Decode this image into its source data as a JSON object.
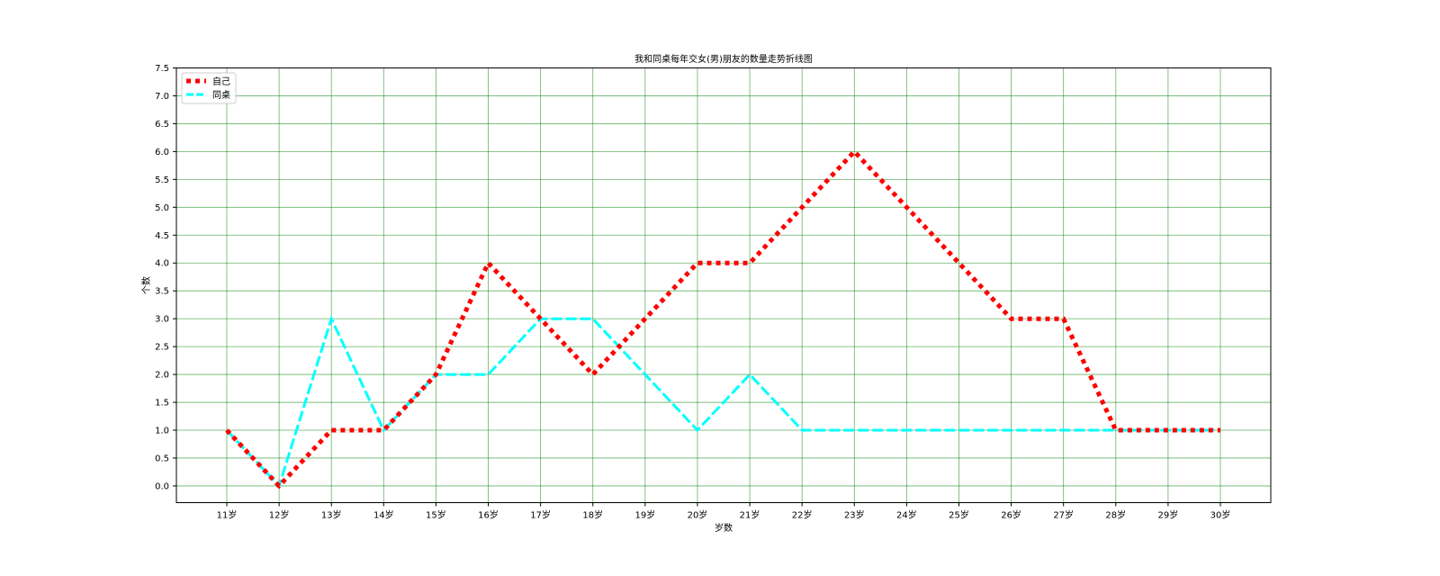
{
  "chart_data": {
    "type": "line",
    "title": "我和同桌每年交女(男)朋友的数量走势折线图",
    "xlabel": "岁数",
    "ylabel": "个数",
    "categories": [
      "11岁",
      "12岁",
      "13岁",
      "14岁",
      "15岁",
      "16岁",
      "17岁",
      "18岁",
      "19岁",
      "20岁",
      "21岁",
      "22岁",
      "23岁",
      "24岁",
      "25岁",
      "26岁",
      "27岁",
      "28岁",
      "29岁",
      "30岁"
    ],
    "ylim": [
      -0.3,
      7.5
    ],
    "yticks": [
      "0.0",
      "0.5",
      "1.0",
      "1.5",
      "2.0",
      "2.5",
      "3.0",
      "3.5",
      "4.0",
      "4.5",
      "5.0",
      "5.5",
      "6.0",
      "6.5",
      "7.0",
      "7.5"
    ],
    "grid": true,
    "legend_position": "top-left",
    "series": [
      {
        "name": "自己",
        "color": "#ff0000",
        "style": "dotted",
        "values": [
          1,
          0,
          1,
          1,
          2,
          4,
          3,
          2,
          3,
          4,
          4,
          5,
          6,
          5,
          4,
          3,
          3,
          1,
          1,
          1
        ]
      },
      {
        "name": "同桌",
        "color": "#00ffff",
        "style": "dashed",
        "values": [
          1,
          0,
          3,
          1,
          2,
          2,
          3,
          3,
          2,
          1,
          2,
          1,
          1,
          1,
          1,
          1,
          1,
          1,
          1,
          1
        ]
      }
    ]
  }
}
